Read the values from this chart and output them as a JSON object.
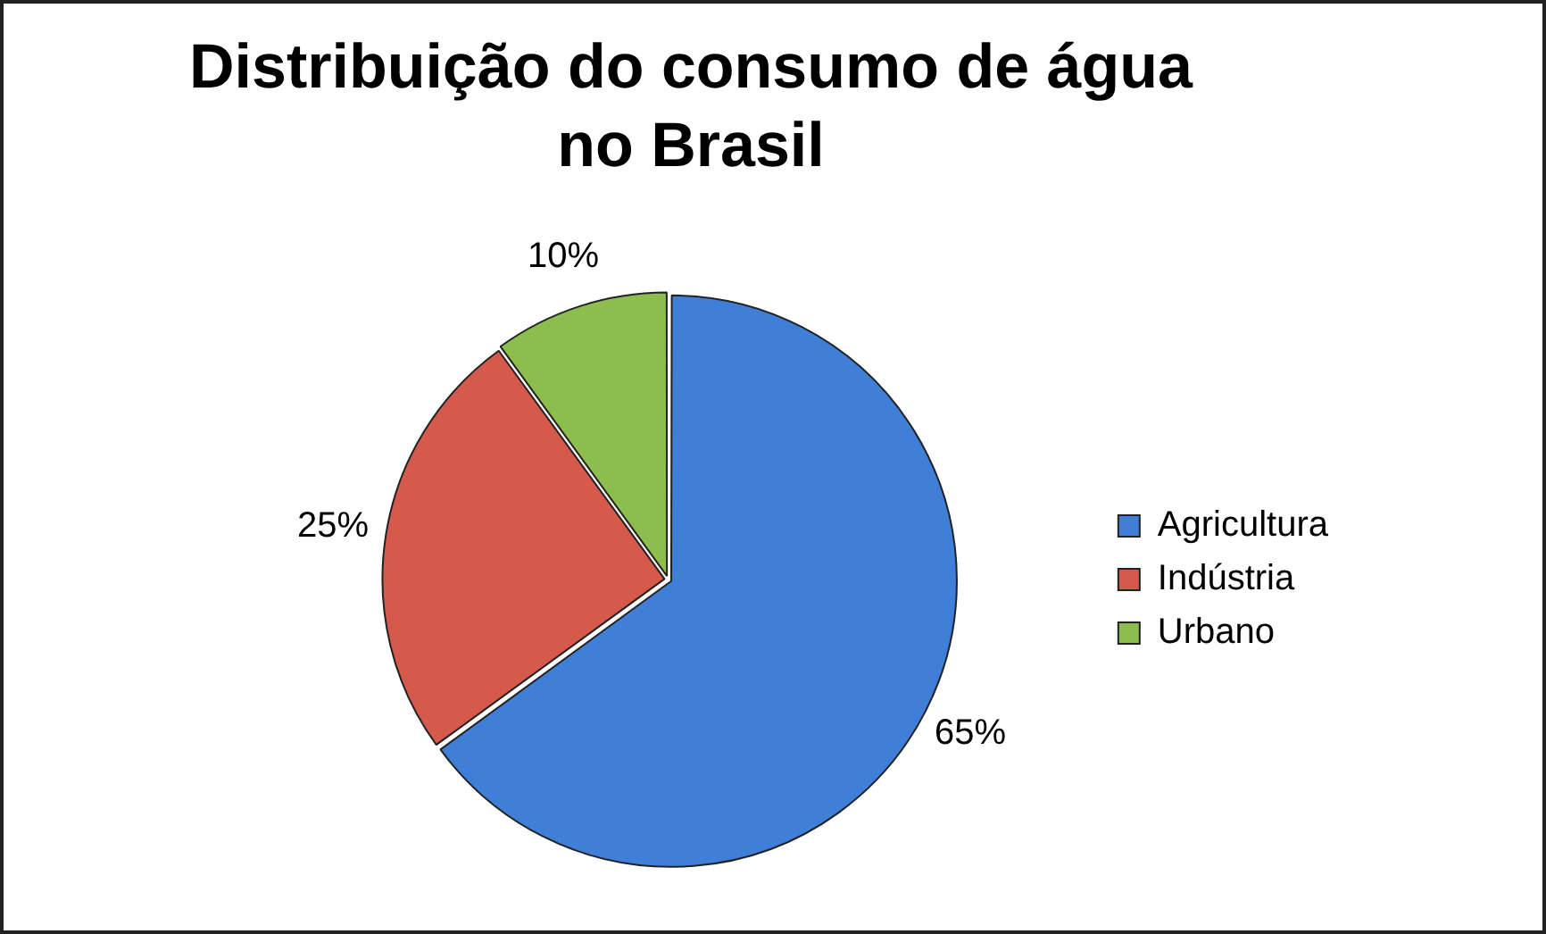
{
  "chart_data": {
    "type": "pie",
    "title": "Distribuição do consumo de água no Brasil",
    "categories": [
      "Agricultura",
      "Indústria",
      "Urbano"
    ],
    "values": [
      65,
      25,
      10
    ],
    "colors": [
      "#3f7fd8",
      "#d65a4c",
      "#8dbd4c"
    ],
    "value_labels": [
      "65%",
      "25%",
      "10%"
    ],
    "legend": "right"
  }
}
